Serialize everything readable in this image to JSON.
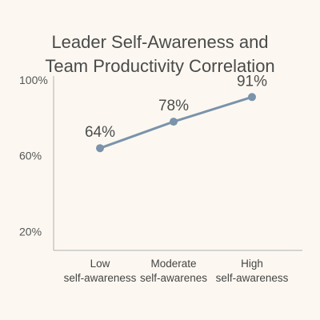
{
  "chart_data": {
    "type": "line",
    "title_lines": [
      "Leader Self-Awareness and",
      "Team Productivity Correlation"
    ],
    "categories": [
      [
        "Low",
        "self-awareness"
      ],
      [
        "Moderate",
        "self-awarenes"
      ],
      [
        "High",
        "self-awareness"
      ]
    ],
    "values": [
      64,
      78,
      91
    ],
    "data_labels": [
      "64%",
      "78%",
      "91%"
    ],
    "yticks": [
      20,
      60,
      100
    ],
    "ytick_labels": [
      "20%",
      "60%",
      "100%"
    ],
    "ylim": [
      10,
      100
    ],
    "grid": false,
    "legend": "none",
    "line_color": "#7b93ab",
    "axis_color": "#bdbdbd"
  }
}
